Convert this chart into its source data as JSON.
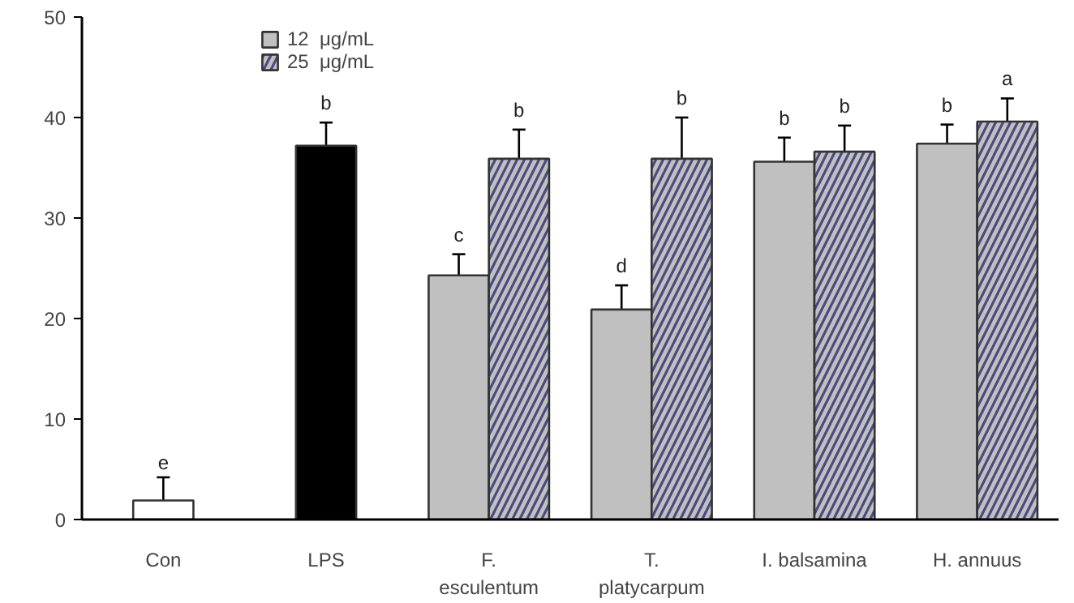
{
  "chart_data": {
    "type": "bar",
    "categories": [
      "Con",
      "LPS",
      "F.\nesculentum",
      "T.\nplatycarpum",
      "I. balsamina",
      "H. annuus"
    ],
    "series": [
      {
        "colors": [
          "#ffffff",
          "#000000",
          null,
          null,
          null,
          null
        ],
        "values": [
          1.9,
          37.2,
          null,
          null,
          null,
          null
        ],
        "errors": [
          2.3,
          2.3,
          null,
          null,
          null,
          null
        ],
        "value_labels": [
          "e",
          "b",
          null,
          null,
          null,
          null
        ]
      },
      {
        "name": "12  μg/mL",
        "color": "#c0c0c0",
        "values": [
          null,
          null,
          24.3,
          20.9,
          35.6,
          37.4
        ],
        "errors": [
          null,
          null,
          2.1,
          2.4,
          2.4,
          1.9
        ],
        "value_labels": [
          null,
          null,
          "c",
          "d",
          "b",
          "b"
        ]
      },
      {
        "name": "25  μg/mL",
        "color": "#c0c0c0",
        "values": [
          null,
          null,
          35.9,
          35.9,
          36.6,
          39.6
        ],
        "errors": [
          null,
          null,
          2.9,
          4.1,
          2.6,
          2.3
        ],
        "value_labels": [
          null,
          null,
          "b",
          "b",
          "b",
          "a"
        ]
      }
    ],
    "ylim": [
      0,
      50
    ],
    "yticks": [
      0,
      10,
      20,
      30,
      40,
      50
    ],
    "grid": false,
    "legend": "top left"
  }
}
